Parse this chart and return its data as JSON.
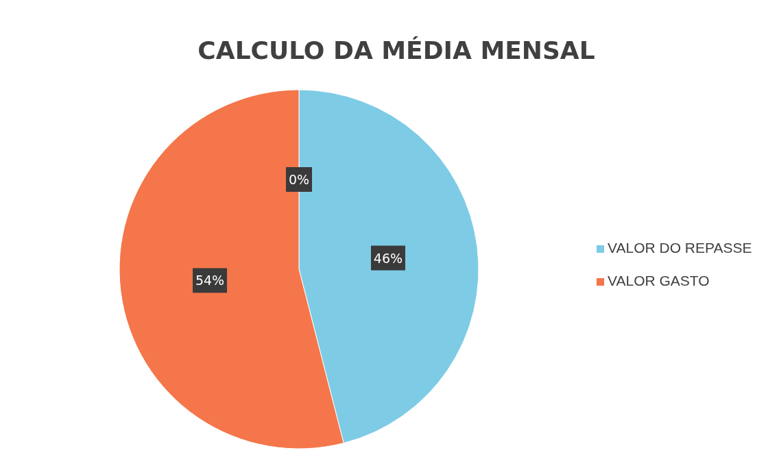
{
  "chart_data": {
    "type": "pie",
    "title": "CALCULO DA MÉDIA MENSAL",
    "categories": [
      "VALOR DO REPASSE",
      "VALOR GASTO",
      null
    ],
    "values": [
      46,
      54,
      0
    ],
    "colors": [
      "#7ecbe6",
      "#f4764a",
      "#a5a5a5"
    ],
    "value_labels": [
      "46%",
      "54%",
      "0%"
    ],
    "legend": "right"
  }
}
